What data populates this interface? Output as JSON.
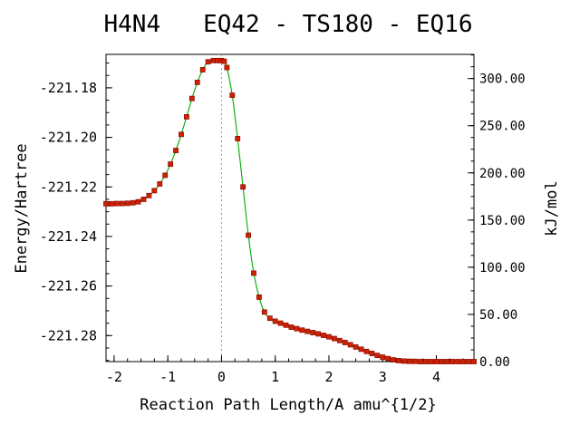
{
  "chart_data": {
    "type": "line",
    "title": "H4N4   EQ42 - TS180 - EQ16",
    "xlabel": "Reaction Path Length/A amu^{1/2}",
    "ylabel": "Energy/Hartree",
    "y2label": "kJ/mol",
    "xlim": [
      -2.15,
      4.7
    ],
    "ylim": [
      -221.2905,
      -221.1665
    ],
    "y2lim": [
      0.0,
      325.6
    ],
    "x_ticks": [
      -2,
      -1,
      0,
      1,
      2,
      3,
      4
    ],
    "x_tick_labels": [
      "-2",
      "-1",
      "0",
      "1",
      "2",
      "3",
      "4"
    ],
    "y_ticks": [
      -221.18,
      -221.2,
      -221.22,
      -221.24,
      -221.26,
      -221.28
    ],
    "y_tick_labels": [
      "-221.18",
      "-221.20",
      "-221.22",
      "-221.24",
      "-221.26",
      "-221.28"
    ],
    "y2_ticks": [
      300,
      250,
      200,
      150,
      100,
      50,
      0
    ],
    "y2_tick_labels": [
      "300.00",
      "250.00",
      "200.00",
      "150.00",
      "100.00",
      "50.00",
      "0.00"
    ],
    "ts_marker_x": 0.0,
    "line_color": "#00aa00",
    "marker_color": "#cc2200",
    "marker_edge_color": "#880000",
    "ts_line_color": "#999999",
    "series": [
      {
        "x": [
          -2.15,
          -2.05,
          -1.95,
          -1.85,
          -1.75,
          -1.65,
          -1.55,
          -1.45,
          -1.35,
          -1.25,
          -1.15,
          -1.05,
          -0.95,
          -0.85,
          -0.75,
          -0.65,
          -0.55,
          -0.45,
          -0.35,
          -0.25,
          -0.15,
          -0.07,
          0.0,
          0.05,
          0.1,
          0.2,
          0.3,
          0.4,
          0.5,
          0.6,
          0.7,
          0.8,
          0.9,
          1.0,
          1.1,
          1.2,
          1.3,
          1.4,
          1.5,
          1.6,
          1.7,
          1.8,
          1.9,
          2.0,
          2.1,
          2.2,
          2.3,
          2.4,
          2.5,
          2.6,
          2.7,
          2.8,
          2.9,
          3.0,
          3.1,
          3.2,
          3.3,
          3.4,
          3.5,
          3.6,
          3.7,
          3.8,
          3.9,
          4.0,
          4.1,
          4.2,
          4.3,
          4.4,
          4.5,
          4.6,
          4.7
        ],
        "y": [
          -221.2268,
          -221.2268,
          -221.2267,
          -221.2267,
          -221.2266,
          -221.2264,
          -221.226,
          -221.225,
          -221.2235,
          -221.2215,
          -221.2188,
          -221.2153,
          -221.2108,
          -221.2053,
          -221.1988,
          -221.1917,
          -221.1843,
          -221.1778,
          -221.1727,
          -221.1695,
          -221.169,
          -221.169,
          -221.169,
          -221.1693,
          -221.1718,
          -221.183,
          -221.2005,
          -221.22,
          -221.2395,
          -221.2548,
          -221.2645,
          -221.2705,
          -221.273,
          -221.2742,
          -221.275,
          -221.2758,
          -221.2766,
          -221.2772,
          -221.2778,
          -221.2783,
          -221.2788,
          -221.2793,
          -221.2799,
          -221.2805,
          -221.2812,
          -221.282,
          -221.2828,
          -221.2837,
          -221.2846,
          -221.2855,
          -221.2864,
          -221.2872,
          -221.288,
          -221.2887,
          -221.2893,
          -221.2898,
          -221.2901,
          -221.2903,
          -221.2904,
          -221.2904,
          -221.2905,
          -221.2905,
          -221.2905,
          -221.2905,
          -221.2905,
          -221.2905,
          -221.2905,
          -221.2905,
          -221.2905,
          -221.2905,
          -221.2905
        ]
      }
    ]
  }
}
